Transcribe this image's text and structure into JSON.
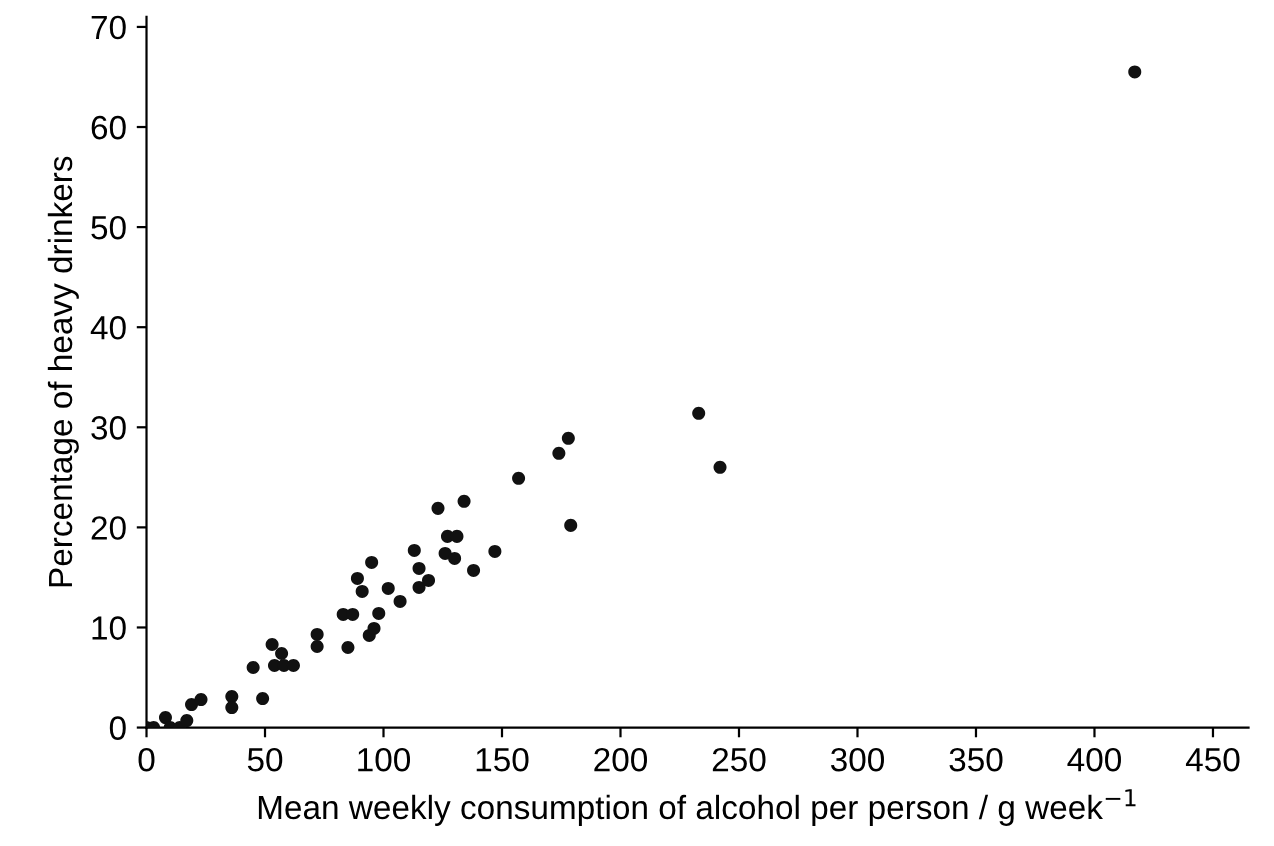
{
  "chart_data": {
    "type": "scatter",
    "xlabel": "Mean weekly consumption of alcohol per person / g week$^{−1}$",
    "ylabel": "Percentage of heavy drinkers",
    "x": [
      0,
      3,
      8,
      10,
      14,
      17,
      19,
      23,
      36,
      36,
      45,
      49,
      53,
      57,
      54,
      58,
      62,
      72,
      72,
      83,
      87,
      85,
      89,
      91,
      95,
      94,
      96,
      98,
      102,
      107,
      113,
      115,
      115,
      119,
      123,
      126,
      127,
      131,
      130,
      134,
      138,
      147,
      157,
      174,
      178,
      179,
      233,
      242,
      417
    ],
    "values": [
      0,
      0,
      1,
      0,
      0,
      0.7,
      2.3,
      2.8,
      3.1,
      2,
      6,
      2.9,
      8.3,
      7.4,
      6.2,
      6.2,
      6.2,
      9.3,
      8.1,
      11.3,
      11.3,
      8,
      14.9,
      13.6,
      16.5,
      9.2,
      9.9,
      11.4,
      13.9,
      12.6,
      17.7,
      15.9,
      14,
      14.7,
      21.9,
      17.4,
      19.1,
      19.1,
      16.9,
      22.6,
      15.7,
      17.6,
      24.9,
      27.4,
      28.9,
      20.2,
      31.4,
      26,
      65.5
    ],
    "color": "#111111",
    "marker": "circle",
    "xlim": [
      0,
      465
    ],
    "xticks": [
      0,
      50,
      100,
      150,
      200,
      250,
      300,
      350,
      400,
      450
    ],
    "ylim": [
      0,
      71
    ],
    "yticks": [
      0,
      10,
      20,
      30,
      40,
      50,
      60,
      70
    ],
    "grid": false
  }
}
